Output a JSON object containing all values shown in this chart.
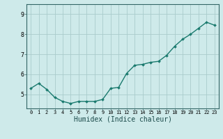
{
  "x": [
    0,
    1,
    2,
    3,
    4,
    5,
    6,
    7,
    8,
    9,
    10,
    11,
    12,
    13,
    14,
    15,
    16,
    17,
    18,
    19,
    20,
    21,
    22,
    23
  ],
  "y": [
    5.3,
    5.55,
    5.25,
    4.85,
    4.65,
    4.55,
    4.65,
    4.65,
    4.65,
    4.75,
    5.3,
    5.35,
    6.05,
    6.45,
    6.5,
    6.6,
    6.65,
    6.95,
    7.4,
    7.75,
    8.0,
    8.3,
    8.6,
    8.45
  ],
  "line_color": "#1a7a6e",
  "marker_color": "#1a7a6e",
  "bg_color": "#ceeaea",
  "grid_color": "#aacccc",
  "axis_color": "#336666",
  "xlabel": "Humidex (Indice chaleur)",
  "xlim": [
    -0.5,
    23.5
  ],
  "ylim": [
    4.3,
    9.5
  ],
  "yticks": [
    5,
    6,
    7,
    8,
    9
  ],
  "xtick_labels": [
    "0",
    "1",
    "2",
    "3",
    "4",
    "5",
    "6",
    "7",
    "8",
    "9",
    "10",
    "11",
    "12",
    "13",
    "14",
    "15",
    "16",
    "17",
    "18",
    "19",
    "20",
    "21",
    "22",
    "23"
  ],
  "linewidth": 1.0,
  "markersize": 2.0
}
